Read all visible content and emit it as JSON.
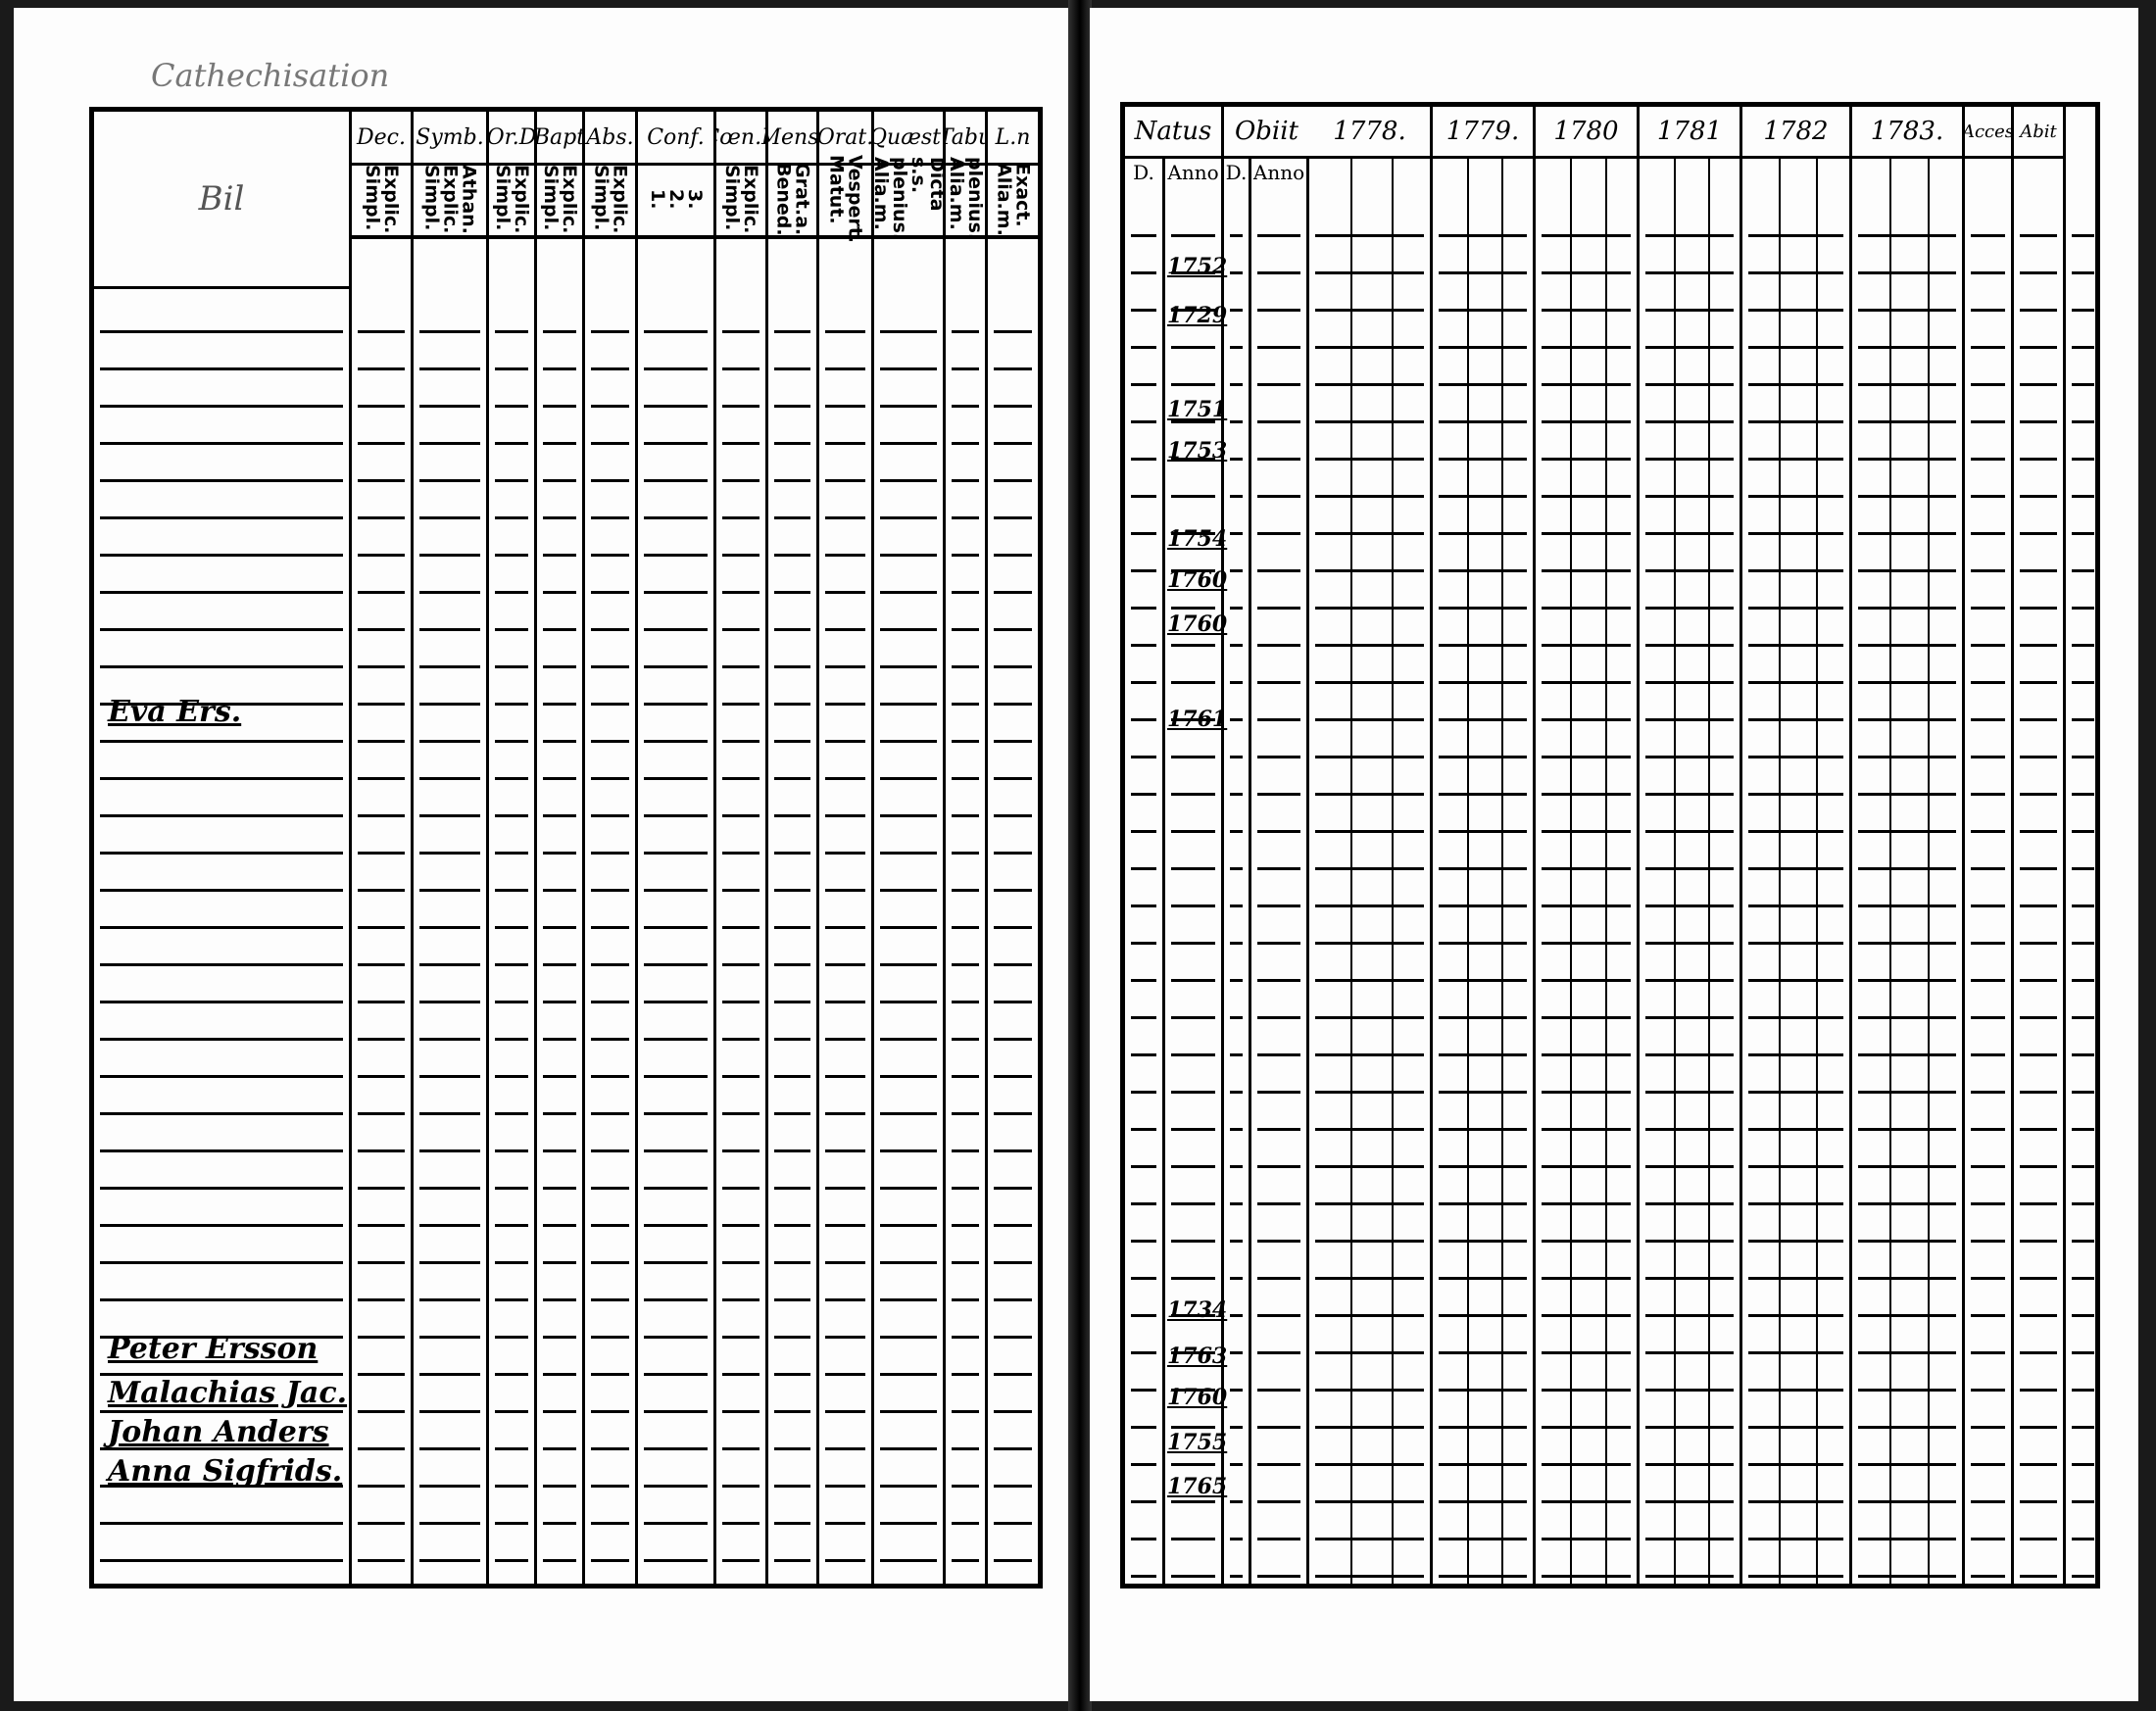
{
  "left_page": {
    "title": "Cathechisation",
    "name_header": "Bil",
    "columns": [
      {
        "label": "Dec.",
        "sub": "Explic.\nSimpl."
      },
      {
        "label": "Symb.",
        "sub": "Athan.\nExplic.\nSimpl."
      },
      {
        "label": "Or.D",
        "sub": "Explic.\nSimpl."
      },
      {
        "label": "Bapt",
        "sub": "Explic.\nSimpl."
      },
      {
        "label": "Abs.",
        "sub": "Explic.\nSimpl."
      },
      {
        "label": "Conf.",
        "sub": "3.\n2.\n1."
      },
      {
        "label": "Cœn.D",
        "sub": "Explic.\nSimpl."
      },
      {
        "label": "Mens.",
        "sub": "Grat.a.\nBened."
      },
      {
        "label": "Orat.",
        "sub": "Vespert.\nMatut."
      },
      {
        "label": "Quæst.",
        "sub": "Dicta s.s.\nplenius.\nAlia.m."
      },
      {
        "label": "Tabu",
        "sub": "plenius.\nAlia.m."
      },
      {
        "label": "L.n",
        "sub": "Exact.\nAlia.m."
      }
    ],
    "names": [
      "Eva Ers.",
      "Peter Ersson",
      "Malachias Jac.",
      "Johan Anders",
      "Anna Sigfrids."
    ]
  },
  "right_page": {
    "natus": "Natus",
    "obiit": "Obiit",
    "d": "D.",
    "anno": "Anno",
    "years": [
      "1778.",
      "1779.",
      "1780",
      "1781",
      "1782",
      "1783."
    ],
    "acces": "Acces",
    "abit": "Abit",
    "anno_values": [
      "1752",
      "1729",
      "1751",
      "1753",
      "1754",
      "1760",
      "1760",
      "1761",
      "1734",
      "1763",
      "1760",
      "1755",
      "1765"
    ]
  }
}
